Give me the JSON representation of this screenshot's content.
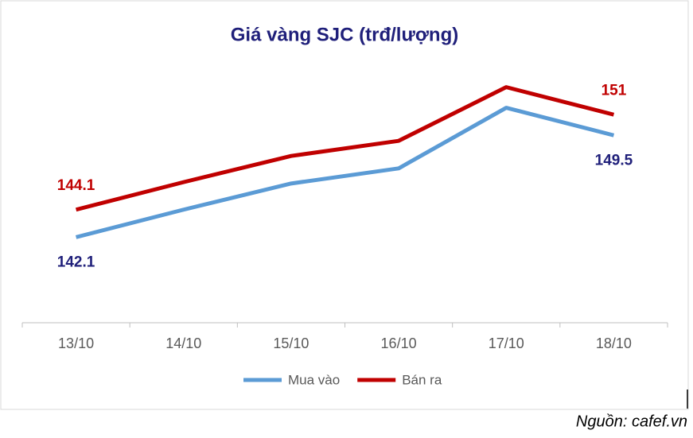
{
  "chart_data": {
    "type": "line",
    "title": "Giá vàng SJC (trđ/lượng)",
    "categories": [
      "13/10",
      "14/10",
      "15/10",
      "16/10",
      "17/10",
      "18/10"
    ],
    "series": [
      {
        "name": "Mua vào",
        "color": "#5b9bd5",
        "values": [
          142.1,
          144.1,
          146.0,
          147.1,
          151.5,
          149.5
        ],
        "value_labels": [
          "142.1",
          null,
          null,
          null,
          null,
          "149.5"
        ],
        "label_color": "#1f1f7a"
      },
      {
        "name": "Bán ra",
        "color": "#c00000",
        "values": [
          144.1,
          146.1,
          148.0,
          149.1,
          153.0,
          151
        ],
        "value_labels": [
          "144.1",
          null,
          null,
          null,
          null,
          "151"
        ],
        "label_color": "#c00000"
      }
    ],
    "ylim": [
      136,
      155
    ],
    "legend": "bottom",
    "source": "Nguồn: cafef.vn"
  }
}
